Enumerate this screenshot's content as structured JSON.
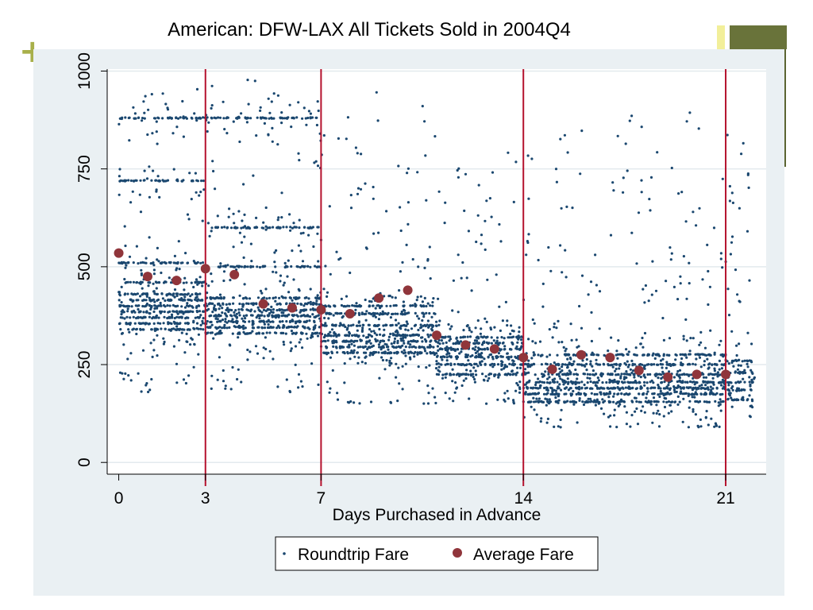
{
  "slide": {
    "accent_green": "#a8b04a",
    "accent_olive": "#69733a",
    "accent_yellow": "#f2ef9a",
    "plus_glyph": "+"
  },
  "chart_data": {
    "type": "scatter",
    "title": "American: DFW-LAX  All Tickets Sold in 2004Q4",
    "xlabel": "Days Purchased in Advance",
    "ylabel": "",
    "xlim": [
      -0.4,
      22.4
    ],
    "ylim": [
      -30,
      1005
    ],
    "x_ticks": [
      0,
      3,
      7,
      14,
      21
    ],
    "x_tick_labels": [
      "0",
      "3",
      "7",
      "14",
      "21"
    ],
    "y_ticks": [
      0,
      250,
      500,
      750,
      1000
    ],
    "y_tick_labels": [
      "0",
      "250",
      "500",
      "750",
      "1000"
    ],
    "reference_lines_x": [
      3,
      7,
      14,
      21
    ],
    "grid": true,
    "legend_position": "bottom",
    "colors": {
      "plot_background": "#ffffff",
      "outer_background": "#eaf0f3",
      "gridline": "#e3eaee",
      "roundtrip": "#1a476f",
      "average": "#90353b",
      "reference_line": "#b5122e"
    },
    "series": [
      {
        "name": "Roundtrip Fare",
        "marker": "dot",
        "approx_count": 5000,
        "segments": [
          {
            "x": [
              0,
              3
            ],
            "levels": [
              340,
              355,
              370,
              385,
              400,
              415,
              430,
              460,
              510,
              720,
              880
            ],
            "scatter_range": [
              180,
              960
            ]
          },
          {
            "x": [
              3,
              7
            ],
            "levels": [
              330,
              345,
              360,
              375,
              390,
              405,
              420,
              500,
              600,
              880
            ],
            "scatter_range": [
              180,
              980
            ]
          },
          {
            "x": [
              7,
              11
            ],
            "levels": [
              280,
              295,
              310,
              325,
              350,
              380,
              400
            ],
            "scatter_range": [
              150,
              960
            ]
          },
          {
            "x": [
              11,
              14
            ],
            "levels": [
              225,
              250,
              270,
              290,
              305,
              320
            ],
            "scatter_range": [
              150,
              800
            ]
          },
          {
            "x": [
              14,
              21
            ],
            "levels": [
              155,
              175,
              190,
              205,
              225,
              250,
              275
            ],
            "scatter_range": [
              90,
              900
            ]
          },
          {
            "x": [
              21,
              22
            ],
            "levels": [
              160,
              185,
              205,
              230,
              260
            ],
            "scatter_range": [
              110,
              900
            ]
          }
        ]
      },
      {
        "name": "Average Fare",
        "marker": "circle",
        "x": [
          0,
          1,
          2,
          3,
          4,
          5,
          6,
          7,
          8,
          9,
          10,
          11,
          12,
          13,
          14,
          15,
          16,
          17,
          18,
          19,
          20,
          21
        ],
        "y": [
          535,
          475,
          465,
          495,
          480,
          405,
          395,
          390,
          380,
          420,
          440,
          325,
          300,
          290,
          268,
          238,
          275,
          268,
          235,
          218,
          225,
          225
        ]
      }
    ]
  }
}
